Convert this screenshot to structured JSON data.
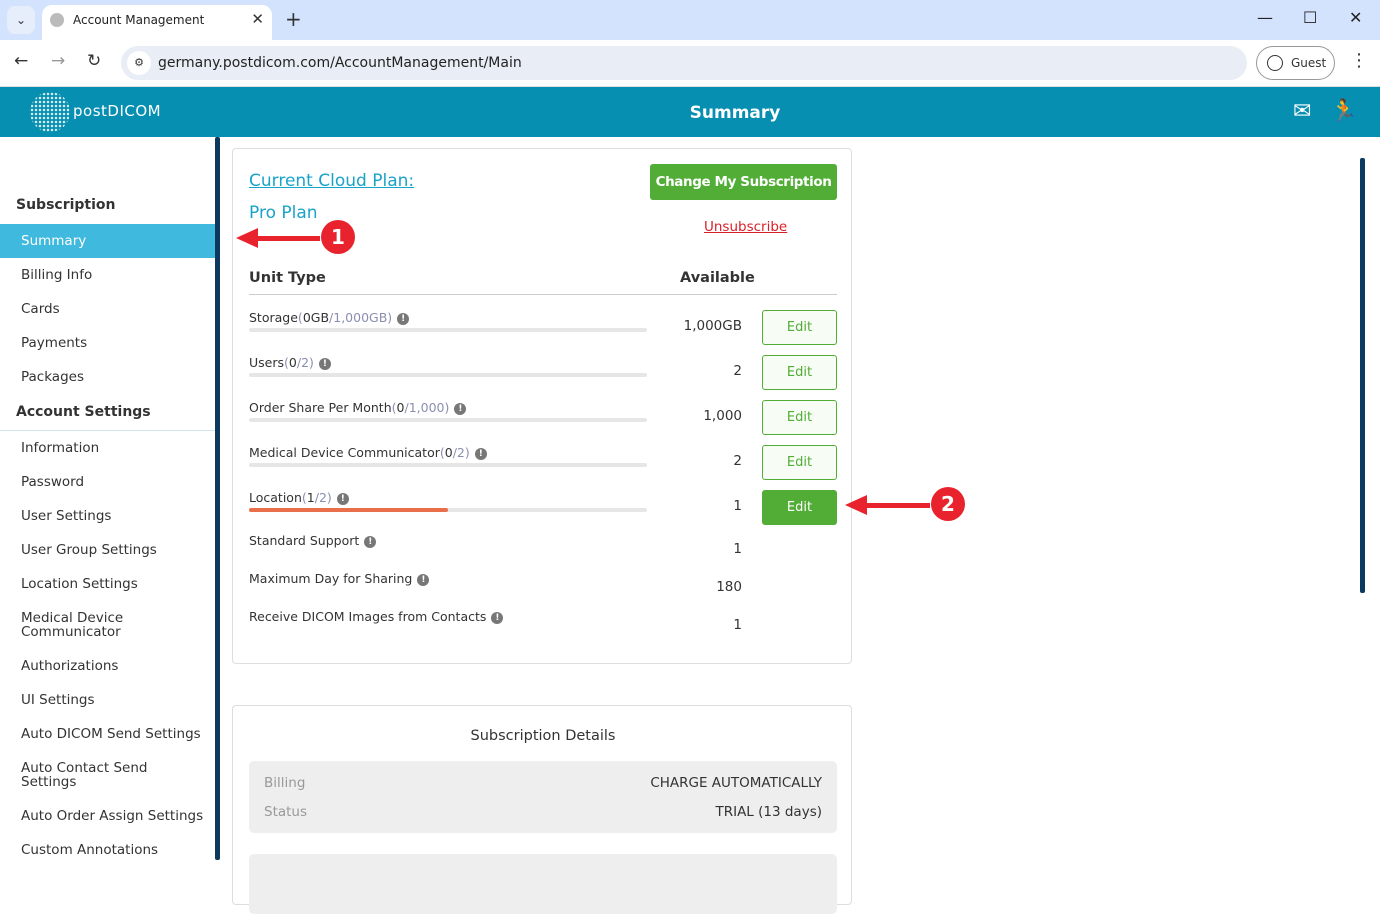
{
  "browser": {
    "tab_title": "Account Management",
    "url": "germany.postdicom.com/AccountManagement/Main",
    "profile": "Guest"
  },
  "header": {
    "logo": "postDICOM",
    "title": "Summary",
    "icons": [
      "announcement-icon",
      "logout-icon"
    ]
  },
  "sidebar": {
    "sections": [
      {
        "title": "Subscription",
        "items": [
          "Summary",
          "Billing Info",
          "Cards",
          "Payments",
          "Packages"
        ]
      },
      {
        "title": "Account Settings",
        "items": [
          "Information",
          "Password",
          "User Settings",
          "User Group Settings",
          "Location Settings",
          "Medical Device Communicator",
          "Authorizations",
          "UI Settings",
          "Auto DICOM Send Settings",
          "Auto Contact Send Settings",
          "Auto Order Assign Settings",
          "Custom Annotations"
        ]
      }
    ],
    "active": "Summary"
  },
  "plan": {
    "heading": "Current Cloud Plan:",
    "name": "Pro Plan",
    "change_label": "Change My Subscription",
    "unsubscribe_label": "Unsubscribe"
  },
  "units": {
    "col_type": "Unit Type",
    "col_available": "Available",
    "edit_label": "Edit",
    "rows": [
      {
        "label": "Storage",
        "used": "0GB",
        "total": "1,000GB",
        "available": "1,000GB",
        "usage_fraction": 0,
        "editable": true
      },
      {
        "label": "Users",
        "used": "0",
        "total": "2",
        "available": "2",
        "usage_fraction": 0,
        "editable": true
      },
      {
        "label": "Order Share Per Month",
        "used": "0",
        "total": "1,000",
        "available": "1,000",
        "usage_fraction": 0,
        "editable": true
      },
      {
        "label": "Medical Device Communicator",
        "used": "0",
        "total": "2",
        "available": "2",
        "usage_fraction": 0,
        "editable": true
      },
      {
        "label": "Location",
        "used": "1",
        "total": "2",
        "available": "1",
        "usage_fraction": 0.5,
        "editable": true,
        "highlighted": true
      }
    ],
    "plain_rows": [
      {
        "label": "Standard Support",
        "available": "1"
      },
      {
        "label": "Maximum Day for Sharing",
        "available": "180"
      },
      {
        "label": "Receive DICOM Images from Contacts",
        "available": "1"
      }
    ]
  },
  "details": {
    "title": "Subscription Details",
    "rows": [
      {
        "key": "Billing",
        "value": "CHARGE AUTOMATICALLY"
      },
      {
        "key": "Status",
        "value": "TRIAL (13 days)"
      }
    ]
  },
  "annotations": {
    "badge1": "1",
    "badge2": "2",
    "color": "#e8232d"
  },
  "colors": {
    "header": "#078fb1",
    "active": "#3fb9de",
    "green": "#52ad36",
    "progress": "#e96f4b",
    "link": "#1aa3c8",
    "unsubscribe": "#d8202a"
  }
}
